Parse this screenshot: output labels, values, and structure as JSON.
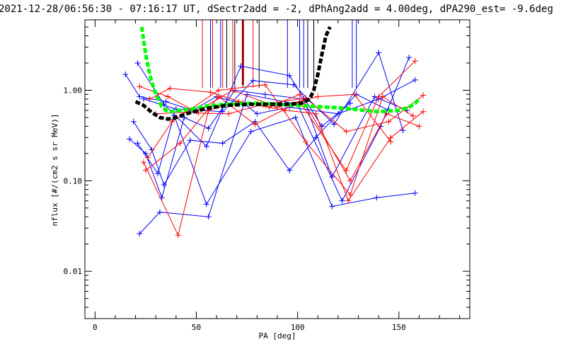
{
  "chart_data": {
    "type": "line",
    "title": "2021-12-28/06:56:30 - 07:16:17 UT, dSectr2add = -2, dPhAng2add = 4.00deg, dPA290_est=  -9.6deg",
    "xlabel": "PA [deg]",
    "ylabel": "nflux [#/(cm2 s sr MeV)]",
    "xlim": [
      -5,
      185
    ],
    "ylim": [
      0.003,
      6
    ],
    "yscale": "log",
    "xticks": [
      0,
      50,
      100,
      150
    ],
    "xtick_labels": [
      "0",
      "50",
      "100",
      "150"
    ],
    "yticks": [
      0.01,
      0.1,
      1.0
    ],
    "ytick_labels": [
      "0.01",
      "0.10",
      "1.00"
    ],
    "grid": false,
    "colors": {
      "blue": "#0000ff",
      "red": "#ff0000",
      "fit_green": "#00ff00",
      "fit_black": "#000000",
      "axis": "#000000"
    },
    "series": [
      {
        "color": "blue",
        "x": [
          15,
          22,
          35,
          48,
          60,
          74,
          80,
          96,
          120,
          140,
          158
        ],
        "y": [
          1.5,
          0.85,
          0.75,
          0.6,
          0.85,
          0.7,
          0.55,
          0.65,
          0.55,
          0.8,
          1.3
        ]
      },
      {
        "color": "blue",
        "x": [
          17,
          25,
          33,
          44,
          56,
          69,
          84,
          103,
          117,
          138,
          154
        ],
        "y": [
          0.29,
          0.2,
          0.065,
          0.5,
          0.38,
          1.0,
          0.9,
          0.8,
          0.11,
          0.85,
          0.6
        ]
      },
      {
        "color": "blue",
        "x": [
          19,
          28,
          34,
          47,
          63,
          79,
          96,
          109,
          129,
          145
        ],
        "y": [
          0.45,
          0.22,
          0.09,
          0.28,
          0.26,
          0.45,
          0.13,
          0.3,
          0.9,
          0.6
        ]
      },
      {
        "color": "blue",
        "x": [
          21,
          31,
          39,
          55,
          77,
          99,
          117,
          139,
          158
        ],
        "y": [
          0.26,
          0.12,
          0.53,
          0.055,
          0.35,
          0.5,
          0.052,
          0.065,
          0.073
        ]
      },
      {
        "color": "blue",
        "x": [
          22,
          32,
          56,
          75,
          100,
          122,
          141,
          155
        ],
        "y": [
          0.026,
          0.045,
          0.04,
          0.9,
          0.7,
          0.06,
          0.4,
          2.3
        ]
      },
      {
        "color": "blue",
        "x": [
          21,
          34,
          55,
          72,
          96,
          112,
          126
        ],
        "y": [
          2.0,
          0.7,
          0.24,
          1.85,
          1.45,
          0.4,
          0.72
        ]
      },
      {
        "color": "blue",
        "x": [
          24,
          40,
          63,
          78,
          98,
          118,
          140,
          152
        ],
        "y": [
          0.8,
          0.62,
          0.58,
          1.28,
          1.15,
          0.42,
          2.6,
          0.36
        ]
      },
      {
        "color": "red",
        "x": [
          22,
          36,
          51,
          66,
          83,
          104,
          124,
          145,
          162
        ],
        "y": [
          1.1,
          0.85,
          0.56,
          0.55,
          0.7,
          0.82,
          0.35,
          0.45,
          0.88
        ]
      },
      {
        "color": "red",
        "x": [
          24,
          41,
          56,
          71,
          86,
          101,
          126,
          144,
          160
        ],
        "y": [
          0.16,
          0.025,
          0.6,
          0.75,
          0.65,
          0.9,
          0.1,
          0.55,
          0.4
        ]
      },
      {
        "color": "red",
        "x": [
          25,
          42,
          61,
          79,
          101,
          124,
          140,
          158
        ],
        "y": [
          0.13,
          0.26,
          0.85,
          0.42,
          0.75,
          0.13,
          0.85,
          2.1
        ]
      },
      {
        "color": "red",
        "x": [
          27,
          37,
          57,
          73,
          94,
          109,
          125,
          146,
          162
        ],
        "y": [
          0.8,
          1.05,
          0.95,
          0.73,
          0.6,
          0.55,
          0.06,
          0.3,
          0.58
        ]
      },
      {
        "color": "red",
        "x": [
          26,
          38,
          61,
          84,
          104,
          126,
          142,
          157
        ],
        "y": [
          0.18,
          0.45,
          1.0,
          1.15,
          0.27,
          0.07,
          0.85,
          0.52
        ]
      },
      {
        "color": "red",
        "x": [
          30,
          50,
          68,
          90,
          110,
          128,
          146
        ],
        "y": [
          0.55,
          0.58,
          1.0,
          0.65,
          0.85,
          0.9,
          0.27
        ]
      }
    ],
    "vertical_marks": [
      {
        "color": "red",
        "x": [
          53,
          58,
          63,
          68,
          78
        ]
      },
      {
        "color": "red",
        "x": [
          73
        ],
        "bold": true
      },
      {
        "color": "blue",
        "x": [
          57,
          62,
          95,
          101,
          103,
          108,
          127,
          129
        ]
      },
      {
        "color": "black",
        "x": [
          65,
          69,
          73,
          81,
          105,
          108
        ]
      }
    ],
    "fit_curves": [
      {
        "color": "fit_green",
        "x": [
          23,
          25,
          27,
          29,
          31,
          33,
          35,
          38,
          42,
          48,
          55,
          65,
          80,
          100,
          120,
          140,
          150,
          155,
          158,
          160
        ],
        "y": [
          5.0,
          2.5,
          1.5,
          1.05,
          0.8,
          0.66,
          0.6,
          0.58,
          0.6,
          0.62,
          0.67,
          0.7,
          0.72,
          0.68,
          0.64,
          0.58,
          0.6,
          0.65,
          0.72,
          0.8
        ]
      },
      {
        "color": "fit_black",
        "x": [
          20,
          24,
          28,
          32,
          36,
          40,
          45,
          55,
          65,
          75,
          85,
          95,
          102,
          106,
          108,
          110,
          112,
          114,
          116
        ],
        "y": [
          0.75,
          0.68,
          0.57,
          0.5,
          0.48,
          0.5,
          0.55,
          0.63,
          0.68,
          0.7,
          0.7,
          0.7,
          0.72,
          0.8,
          1.0,
          1.5,
          2.5,
          4.0,
          5.0
        ]
      }
    ]
  }
}
